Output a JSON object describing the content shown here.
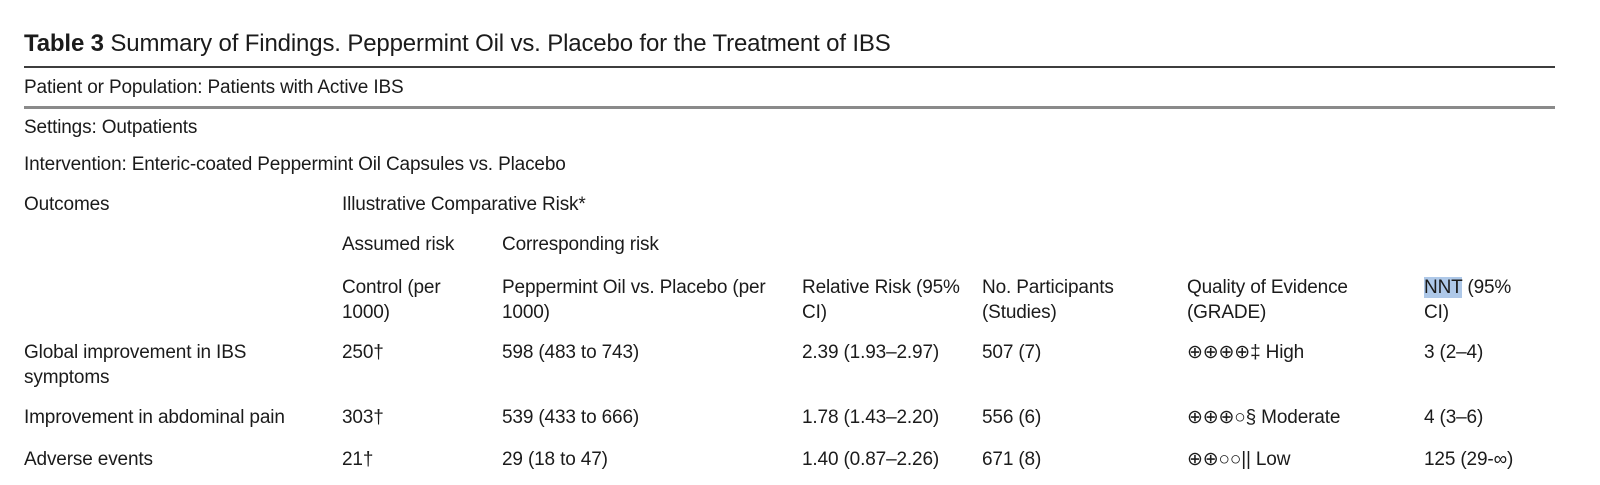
{
  "title": {
    "label": "Table 3",
    "text": "Summary of Findings. Peppermint Oil vs. Placebo for the Treatment of IBS"
  },
  "meta": {
    "patient_population": "Patient or Population: Patients with Active IBS",
    "settings": "Settings: Outpatients",
    "intervention": "Intervention: Enteric-coated Peppermint Oil Capsules vs. Placebo"
  },
  "columns": {
    "outcomes": "Outcomes",
    "illustrative": "Illustrative Comparative Risk*",
    "assumed": "Assumed risk",
    "corresponding": "Corresponding risk",
    "control": "Control (per 1000)",
    "peppermint": "Peppermint Oil vs. Placebo (per 1000)",
    "relative_risk": "Relative Risk (95% CI)",
    "participants": "No. Participants (Studies)",
    "quality": "Quality of Evidence (GRADE)",
    "nnt_highlighted": "NNT",
    "nnt_rest": "(95% CI)"
  },
  "rows": [
    {
      "outcome": "Global improvement in IBS symptoms",
      "assumed_risk": "250†",
      "corresponding_risk": "598 (483 to 743)",
      "relative_risk": "2.39 (1.93–2.97)",
      "participants": "507 (7)",
      "quality": "⊕⊕⊕⊕‡ High",
      "nnt": "3 (2–4)"
    },
    {
      "outcome": "Improvement in abdominal pain",
      "assumed_risk": "303†",
      "corresponding_risk": "539 (433 to 666)",
      "relative_risk": "1.78 (1.43–2.20)",
      "participants": "556 (6)",
      "quality": "⊕⊕⊕○§ Moderate",
      "nnt": "4 (3–6)"
    },
    {
      "outcome": "Adverse events",
      "assumed_risk": "21†",
      "corresponding_risk": "29 (18 to 47)",
      "relative_risk": "1.40 (0.87–2.26)",
      "participants": "671 (8)",
      "quality": "⊕⊕○○|| Low",
      "nnt": "125 (29-∞)"
    }
  ],
  "colors": {
    "highlight": "#aec8e8",
    "rule_dark": "#3d3d3d",
    "rule_gray": "#8a8a8a",
    "text": "#1b1b1b"
  }
}
